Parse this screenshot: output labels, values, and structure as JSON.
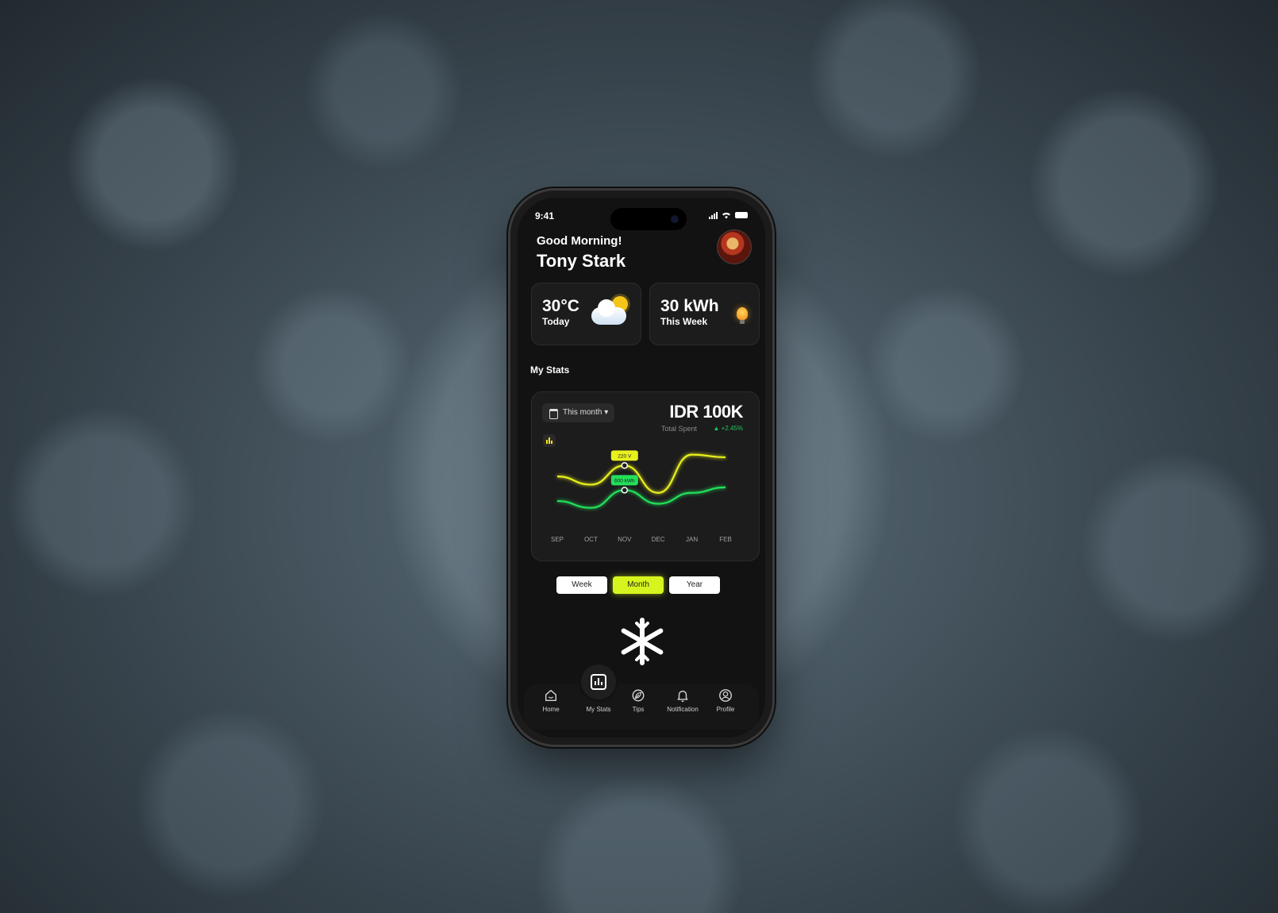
{
  "status_bar": {
    "time": "9:41"
  },
  "header": {
    "greeting": "Good Morning!",
    "name": "Tony Stark"
  },
  "cards": {
    "weather": {
      "value": "30°C",
      "label": "Today"
    },
    "energy": {
      "value": "30 kWh",
      "label": "This Week"
    }
  },
  "stats": {
    "section_title": "My Stats",
    "period": "This month ▾",
    "amount": "IDR 100K",
    "total_label": "Total Spent",
    "change": "+2.45%"
  },
  "chart_data": {
    "type": "line",
    "categories": [
      "SEP",
      "OCT",
      "NOV",
      "DEC",
      "JAN",
      "FEB"
    ],
    "series": [
      {
        "name": "",
        "color": "#e8f01e",
        "values": [
          58,
          46,
          74,
          34,
          90,
          86
        ]
      },
      {
        "name": "",
        "color": "#22e05a",
        "values": [
          22,
          12,
          38,
          18,
          34,
          42
        ]
      }
    ],
    "annotations": [
      {
        "label": "220 V",
        "category": "NOV",
        "series": 0
      },
      {
        "label": "600 kWh",
        "category": "NOV",
        "series": 1
      }
    ],
    "ylim": [
      0,
      100
    ]
  },
  "range_toggle": {
    "options": [
      "Week",
      "Month",
      "Year"
    ],
    "selected": "Month"
  },
  "tabbar": {
    "items": [
      {
        "label": "Home",
        "icon": "home-icon"
      },
      {
        "label": "My Stats",
        "icon": "stats-icon"
      },
      {
        "label": "Tips",
        "icon": "leaf-icon"
      },
      {
        "label": "Notification",
        "icon": "bell-icon"
      },
      {
        "label": "Profile",
        "icon": "profile-icon"
      }
    ]
  },
  "colors": {
    "accent": "#d6f51e",
    "green": "#22e05a",
    "background": "#121212"
  }
}
